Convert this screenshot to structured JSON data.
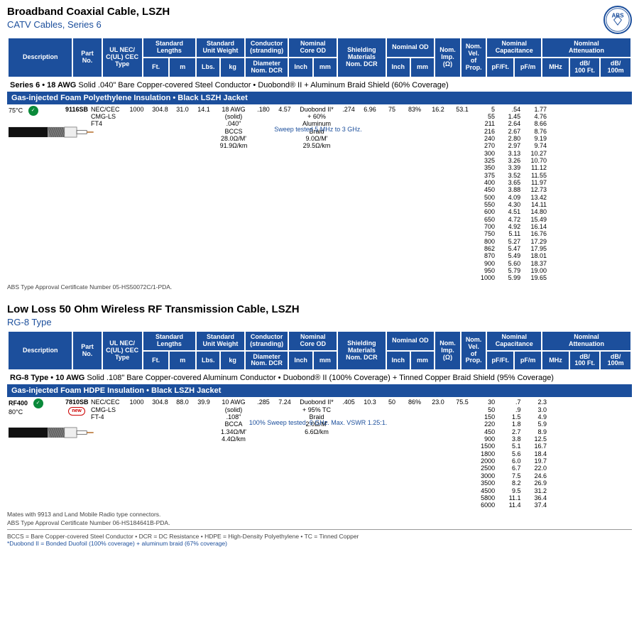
{
  "header_columns": {
    "desc": "Description",
    "part": "Part\nNo.",
    "nec": "UL NEC/\nC(UL) CEC\nType",
    "stdlen": "Standard Lengths",
    "ft": "Ft.",
    "m": "m",
    "stdwt": "Standard\nUnit Weight",
    "lbs": "Lbs.",
    "kg": "kg",
    "cond": "Conductor\n(stranding)",
    "dia_dcr": "Diameter\nNom. DCR",
    "core": "Nominal\nCore OD",
    "inch": "Inch",
    "mm": "mm",
    "shield": "Shielding\nMaterials\nNom. DCR",
    "od": "Nominal OD",
    "imp": "Nom.\nImp.\n(Ω)",
    "vel": "Nom.\nVel.\nof\nProp.",
    "cap": "Nominal\nCapacitance",
    "pfft": "pF/Ft.",
    "pfm": "pF/m",
    "atten": "Nominal\nAttenuation",
    "mhz": "MHz",
    "db100ft": "dB/\n100 Ft.",
    "db100m": "dB/\n100m"
  },
  "section1": {
    "title": "Broadband Coaxial Cable, LSZH",
    "subtitle": "CATV Cables, Series 6",
    "series_bar": "Series 6 • 18 AWG Solid .040\" Bare Copper-covered Steel Conductor • Duobond® II + Aluminum Braid Shield (60% Coverage)",
    "insulation_bar": "Gas-injected Foam Polyethylene Insulation • Black LSZH Jacket",
    "temp": "75°C",
    "part": "9116SB",
    "nec": "NEC/CEC\nCMG-LS\nFT4",
    "ft": "1000",
    "m": "304.8",
    "lbs": "31.0",
    "kg": "14.1",
    "conductor": "18 AWG\n(solid)\n.040\"\nBCCS\n28.0Ω/M'\n91.9Ω/km",
    "core_in": ".180",
    "core_mm": "4.57",
    "shield": "Duobond II*\n+ 60%\nAluminum\nBraid\n9.0Ω/M'\n29.5Ω/km",
    "od_in": ".274",
    "od_mm": "6.96",
    "imp": "75",
    "vel": "83%",
    "pfft": "16.2",
    "pfm": "53.1",
    "sweep": "Sweep tested 5 MHz to 3 GHz.",
    "attenuation": [
      [
        "5",
        ".54",
        "1.77"
      ],
      [
        "55",
        "1.45",
        "4.76"
      ],
      [
        "211",
        "2.64",
        "8.66"
      ],
      [
        "216",
        "2.67",
        "8.76"
      ],
      [
        "240",
        "2.80",
        "9.19"
      ],
      [
        "270",
        "2.97",
        "9.74"
      ],
      [
        "300",
        "3.13",
        "10.27"
      ],
      [
        "325",
        "3.26",
        "10.70"
      ],
      [
        "350",
        "3.39",
        "11.12"
      ],
      [
        "375",
        "3.52",
        "11.55"
      ],
      [
        "400",
        "3.65",
        "11.97"
      ],
      [
        "450",
        "3.88",
        "12.73"
      ],
      [
        "500",
        "4.09",
        "13.42"
      ],
      [
        "550",
        "4.30",
        "14.11"
      ],
      [
        "600",
        "4.51",
        "14.80"
      ],
      [
        "650",
        "4.72",
        "15.49"
      ],
      [
        "700",
        "4.92",
        "16.14"
      ],
      [
        "750",
        "5.11",
        "16.76"
      ],
      [
        "800",
        "5.27",
        "17.29"
      ],
      [
        "862",
        "5.47",
        "17.95"
      ],
      [
        "870",
        "5.49",
        "18.01"
      ],
      [
        "900",
        "5.60",
        "18.37"
      ],
      [
        "950",
        "5.79",
        "19.00"
      ],
      [
        "1000",
        "5.99",
        "19.65"
      ]
    ],
    "cert": "ABS Type Approval Certificate Number 05-HS50072C/1-PDA."
  },
  "section2": {
    "title": "Low Loss 50 Ohm Wireless RF Transmission Cable, LSZH",
    "subtitle": "RG-8 Type",
    "series_bar": "RG-8 Type • 10 AWG Solid .108\" Bare Copper-covered Aluminum Conductor • Duobond® II (100% Coverage) + Tinned Copper Braid Shield (95% Coverage)",
    "insulation_bar": "Gas-injected Foam HDPE Insulation • Black LSZH Jacket",
    "temp_a": "RF400",
    "temp_b": "80°C",
    "part": "7810SB",
    "nec": "NEC/CEC\nCMG-LS\nFT-4",
    "ft": "1000",
    "m": "304.8",
    "lbs": "88.0",
    "kg": "39.9",
    "conductor": "10 AWG\n(solid)\n.108\"\nBCCA\n1.34Ω/M'\n4.4Ω/km",
    "core_in": ".285",
    "core_mm": "7.24",
    "shield": "Duobond II*\n+ 95% TC\nBraid\n2.0Ω/M'\n6.6Ω/km",
    "od_in": ".405",
    "od_mm": "10.3",
    "imp": "50",
    "vel": "86%",
    "pfft": "23.0",
    "pfm": "75.5",
    "sweep": "100% Sweep tested. 6 GHz. Max. VSWR 1.25:1.",
    "attenuation": [
      [
        "30",
        ".7",
        "2.3"
      ],
      [
        "50",
        ".9",
        "3.0"
      ],
      [
        "150",
        "1.5",
        "4.9"
      ],
      [
        "220",
        "1.8",
        "5.9"
      ],
      [
        "450",
        "2.7",
        "8.9"
      ],
      [
        "900",
        "3.8",
        "12.5"
      ],
      [
        "1500",
        "5.1",
        "16.7"
      ],
      [
        "1800",
        "5.6",
        "18.4"
      ],
      [
        "2000",
        "6.0",
        "19.7"
      ],
      [
        "2500",
        "6.7",
        "22.0"
      ],
      [
        "3000",
        "7.5",
        "24.6"
      ],
      [
        "3500",
        "8.2",
        "26.9"
      ],
      [
        "4500",
        "9.5",
        "31.2"
      ],
      [
        "5800",
        "11.1",
        "36.4"
      ],
      [
        "6000",
        "11.4",
        "37.4"
      ]
    ],
    "mates": "Mates with 9913 and Land Mobile Radio type connectors.",
    "cert": "ABS Type Approval Certificate Number 06-HS184641B-PDA."
  },
  "legend1": "BCCS = Bare Copper-covered Steel Conductor  •  DCR = DC Resistance  •  HDPE = High-Density Polyethylene  •  TC = Tinned Copper",
  "legend2": "*Duobond II = Bonded Duofoil (100% coverage) + aluminum braid (67% coverage)",
  "colwidths": {
    "desc": 80,
    "part": 36,
    "nec": 50,
    "ft": 33,
    "m": 33,
    "lbs": 30,
    "kg": 30,
    "conductor": 54,
    "core_in": 30,
    "core_mm": 30,
    "shield": 60,
    "od_in": 30,
    "od_mm": 30,
    "imp": 32,
    "vel": 32,
    "pfft": 34,
    "pfm": 34,
    "mhz": 34,
    "db100ft": 38,
    "db100m": 38
  },
  "colors": {
    "brand_blue": "#1c4f9c"
  }
}
